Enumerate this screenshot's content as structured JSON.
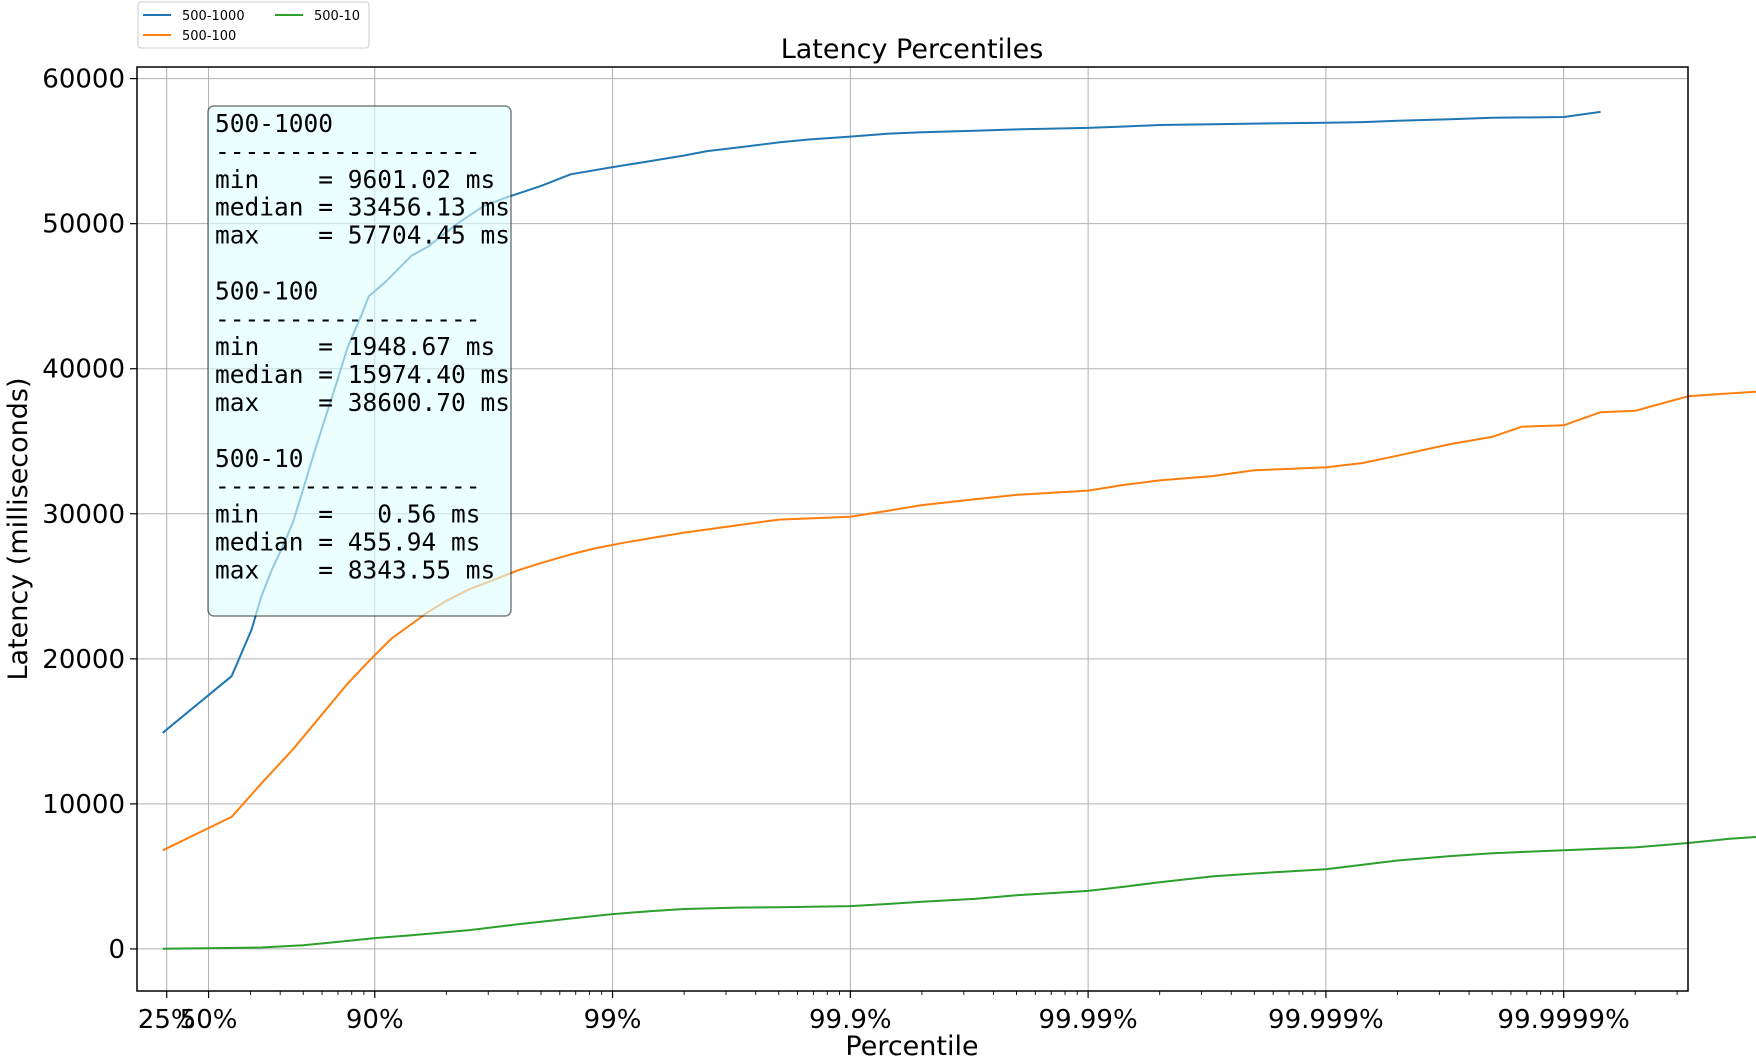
{
  "chart_data": {
    "type": "line",
    "title": "Latency Percentiles",
    "xlabel": "Percentile",
    "ylabel": "Latency (milliseconds)",
    "x_scale": "log inverse (1/(1-p))",
    "ylim": [
      -2900,
      60800
    ],
    "xlim": [
      0.0,
      0.9999997
    ],
    "grid": true,
    "legend_position": "top-left outside",
    "y_ticks": [
      0,
      10000,
      20000,
      30000,
      40000,
      50000,
      60000
    ],
    "y_tick_labels": [
      "0",
      "10000",
      "20000",
      "30000",
      "40000",
      "50000",
      "60000"
    ],
    "x_ticks": [
      0.25,
      0.5,
      0.9,
      0.99,
      0.999,
      0.9999,
      0.99999,
      0.999999
    ],
    "x_tick_labels": [
      "25%",
      "50%",
      "90%",
      "99%",
      "99.9%",
      "99.99%",
      "99.999%",
      "99.9999%"
    ],
    "series": [
      {
        "name": "500-1000",
        "color": "#1f77b4",
        "points": [
          [
            0.22,
            14900
          ],
          [
            0.6,
            18800
          ],
          [
            0.67,
            22000
          ],
          [
            0.7,
            24300
          ],
          [
            0.73,
            26200
          ],
          [
            0.76,
            28000
          ],
          [
            0.78,
            29500
          ],
          [
            0.8,
            31700
          ],
          [
            0.82,
            34200
          ],
          [
            0.84,
            36800
          ],
          [
            0.855,
            39000
          ],
          [
            0.87,
            41500
          ],
          [
            0.885,
            43500
          ],
          [
            0.894,
            45000
          ],
          [
            0.91,
            46000
          ],
          [
            0.93,
            47800
          ],
          [
            0.94,
            48400
          ],
          [
            0.955,
            50000
          ],
          [
            0.965,
            51200
          ],
          [
            0.972,
            51800
          ],
          [
            0.98,
            52600
          ],
          [
            0.985,
            53400
          ],
          [
            0.99,
            53900
          ],
          [
            0.993,
            54300
          ],
          [
            0.995,
            54700
          ],
          [
            0.996,
            55000
          ],
          [
            0.9972,
            55300
          ],
          [
            0.998,
            55600
          ],
          [
            0.9985,
            55800
          ],
          [
            0.999,
            56000
          ],
          [
            0.9993,
            56200
          ],
          [
            0.9995,
            56300
          ],
          [
            0.9997,
            56400
          ],
          [
            0.9998,
            56500
          ],
          [
            0.9999,
            56600
          ],
          [
            0.99993,
            56700
          ],
          [
            0.99995,
            56800
          ],
          [
            0.99997,
            56850
          ],
          [
            0.99998,
            56900
          ],
          [
            0.99999,
            56950
          ],
          [
            0.999993,
            57000
          ],
          [
            0.999995,
            57100
          ],
          [
            0.999997,
            57200
          ],
          [
            0.999998,
            57300
          ],
          [
            0.999999,
            57350
          ],
          [
            0.9999993,
            57704.45
          ]
        ]
      },
      {
        "name": "500-100",
        "color": "#ff7f0e",
        "points": [
          [
            0.22,
            6800
          ],
          [
            0.6,
            9100
          ],
          [
            0.7,
            11400
          ],
          [
            0.78,
            13800
          ],
          [
            0.83,
            16000
          ],
          [
            0.87,
            18300
          ],
          [
            0.895,
            19900
          ],
          [
            0.915,
            21400
          ],
          [
            0.93,
            22400
          ],
          [
            0.94,
            23200
          ],
          [
            0.95,
            24000
          ],
          [
            0.96,
            24800
          ],
          [
            0.968,
            25400
          ],
          [
            0.975,
            26100
          ],
          [
            0.98,
            26600
          ],
          [
            0.985,
            27200
          ],
          [
            0.988,
            27600
          ],
          [
            0.991,
            28000
          ],
          [
            0.993,
            28300
          ],
          [
            0.995,
            28700
          ],
          [
            0.997,
            29200
          ],
          [
            0.998,
            29600
          ],
          [
            0.999,
            29800
          ],
          [
            0.9993,
            30200
          ],
          [
            0.9995,
            30600
          ],
          [
            0.9997,
            31000
          ],
          [
            0.9998,
            31300
          ],
          [
            0.9999,
            31600
          ],
          [
            0.99993,
            32000
          ],
          [
            0.99995,
            32300
          ],
          [
            0.99997,
            32600
          ],
          [
            0.99998,
            33000
          ],
          [
            0.99999,
            33200
          ],
          [
            0.999993,
            33500
          ],
          [
            0.999995,
            34000
          ],
          [
            0.999997,
            34800
          ],
          [
            0.999998,
            35300
          ],
          [
            0.9999985,
            36000
          ],
          [
            0.999999,
            36100
          ],
          [
            0.9999993,
            37000
          ],
          [
            0.9999995,
            37100
          ],
          [
            0.9999997,
            38100
          ],
          [
            0.9999998,
            38300
          ],
          [
            0.99999987,
            38500
          ],
          [
            0.9999999,
            38600.7
          ]
        ]
      },
      {
        "name": "500-10",
        "color": "#2ca02c",
        "points": [
          [
            0.22,
            10
          ],
          [
            0.7,
            100
          ],
          [
            0.8,
            250
          ],
          [
            0.85,
            450
          ],
          [
            0.9,
            750
          ],
          [
            0.93,
            950
          ],
          [
            0.96,
            1300
          ],
          [
            0.975,
            1700
          ],
          [
            0.985,
            2100
          ],
          [
            0.99,
            2400
          ],
          [
            0.993,
            2600
          ],
          [
            0.995,
            2750
          ],
          [
            0.997,
            2850
          ],
          [
            0.998,
            2880
          ],
          [
            0.999,
            2950
          ],
          [
            0.9993,
            3100
          ],
          [
            0.9995,
            3250
          ],
          [
            0.9997,
            3450
          ],
          [
            0.9998,
            3700
          ],
          [
            0.9999,
            4000
          ],
          [
            0.99993,
            4300
          ],
          [
            0.99995,
            4600
          ],
          [
            0.99997,
            5000
          ],
          [
            0.99998,
            5200
          ],
          [
            0.99999,
            5500
          ],
          [
            0.999993,
            5800
          ],
          [
            0.999995,
            6100
          ],
          [
            0.999997,
            6400
          ],
          [
            0.999998,
            6600
          ],
          [
            0.999999,
            6800
          ],
          [
            0.9999993,
            6900
          ],
          [
            0.9999995,
            7000
          ],
          [
            0.9999997,
            7300
          ],
          [
            0.9999998,
            7600
          ],
          [
            0.99999987,
            7800
          ],
          [
            0.9999999,
            8000
          ],
          [
            0.99999993,
            8100
          ],
          [
            0.99999995,
            8200
          ],
          [
            0.99999997,
            8343.55
          ]
        ]
      }
    ],
    "annotation": {
      "lines": [
        "500-1000",
        "------------------",
        "min    = 9601.02 ms",
        "median = 33456.13 ms",
        "max    = 57704.45 ms",
        "",
        "500-100",
        "------------------",
        "min    = 1948.67 ms",
        "median = 15974.40 ms",
        "max    = 38600.70 ms",
        "",
        "500-10",
        "------------------",
        "min    =   0.56 ms",
        "median = 455.94 ms",
        "max    = 8343.55 ms"
      ],
      "background": "#e0ffff"
    }
  }
}
